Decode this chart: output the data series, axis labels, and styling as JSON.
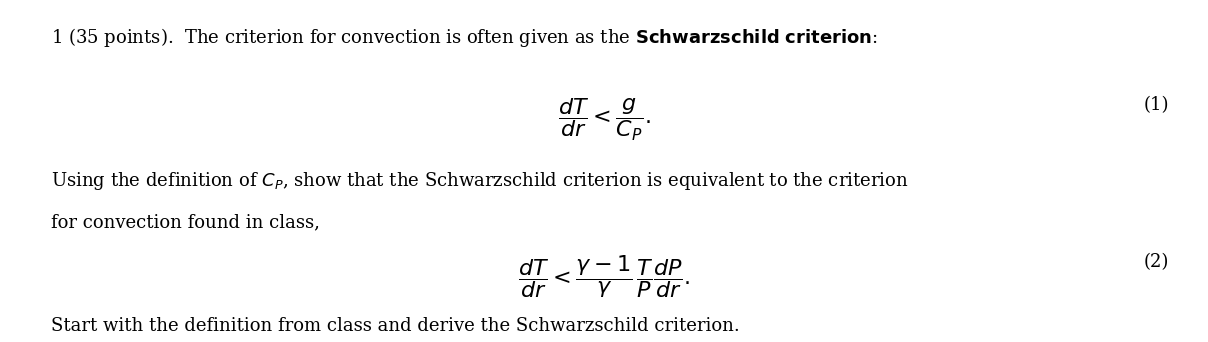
{
  "bg_color": "#ffffff",
  "text_color": "#000000",
  "fig_width": 12.08,
  "fig_height": 3.42,
  "dpi": 100,
  "line1": "1 (35 points).  The criterion for convection is often given as the \\textbf{Schwarzschild criterion}:",
  "eq1": "\\frac{dT}{dr} < \\frac{g}{C_P}.",
  "eq1_label": "(1)",
  "line2a": "Using the definition of $C_P$, show that the Schwarzschild criterion is equivalent to the criterion",
  "line2b": "for convection found in class,",
  "eq2": "\\frac{dT}{dr} < \\frac{\\gamma - 1}{\\gamma}\\frac{T}{P}\\frac{dP}{dr}.",
  "eq2_label": "(2)",
  "line3": "Start with the definition from class and derive the Schwarzschild criterion."
}
